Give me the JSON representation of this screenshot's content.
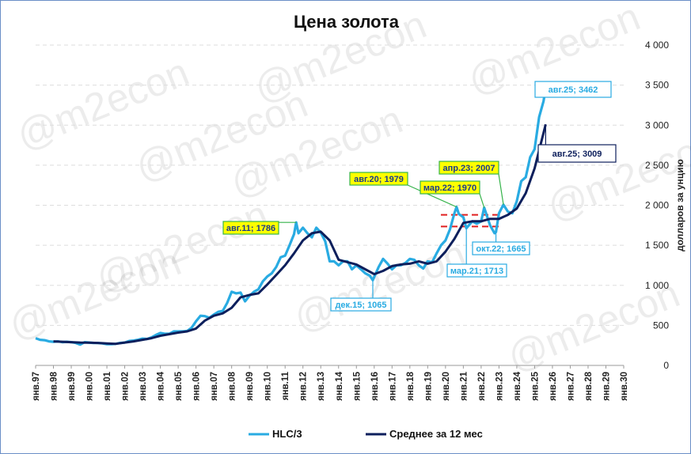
{
  "chart_data": {
    "type": "line",
    "title": "Цена золота",
    "ylabel": "долларов за унцию",
    "ylim": [
      0,
      4000
    ],
    "y_ticks": [
      "0",
      "500",
      "1 000",
      "1 500",
      "2 000",
      "2 500",
      "3 000",
      "3 500",
      "4 000"
    ],
    "y_tick_values": [
      0,
      500,
      1000,
      1500,
      2000,
      2500,
      3000,
      3500,
      4000
    ],
    "x_ticks": [
      "янв.97",
      "янв.98",
      "янв.99",
      "янв.00",
      "янв.01",
      "янв.02",
      "янв.03",
      "янв.04",
      "янв.05",
      "янв.06",
      "янв.07",
      "янв.08",
      "янв.09",
      "янв.10",
      "янв.11",
      "янв.12",
      "янв.13",
      "янв.14",
      "янв.15",
      "янв.16",
      "янв.17",
      "янв.18",
      "янв.19",
      "янв.20",
      "янв.21",
      "янв.22",
      "янв.23",
      "янв.24",
      "янв.25",
      "янв.26",
      "янв.27",
      "янв.28",
      "янв.29",
      "янв.30"
    ],
    "x_start_year": 1997,
    "grid": true,
    "legend_position": "bottom",
    "watermark": "@m2econ",
    "series": [
      {
        "name": "HLC/3",
        "color": "#29abe2",
        "x": [
          1997.0,
          1997.25,
          1997.5,
          1997.75,
          1998.0,
          1998.25,
          1998.5,
          1998.75,
          1999.0,
          1999.25,
          1999.5,
          1999.75,
          2000.0,
          2000.25,
          2000.5,
          2000.75,
          2001.0,
          2001.25,
          2001.5,
          2001.75,
          2002.0,
          2002.25,
          2002.5,
          2002.75,
          2003.0,
          2003.25,
          2003.5,
          2003.75,
          2004.0,
          2004.25,
          2004.5,
          2004.75,
          2005.0,
          2005.25,
          2005.5,
          2005.75,
          2006.0,
          2006.25,
          2006.5,
          2006.75,
          2007.0,
          2007.25,
          2007.5,
          2007.75,
          2008.0,
          2008.25,
          2008.5,
          2008.75,
          2009.0,
          2009.25,
          2009.5,
          2009.75,
          2010.0,
          2010.25,
          2010.5,
          2010.75,
          2011.0,
          2011.25,
          2011.5,
          2011.62,
          2011.75,
          2012.0,
          2012.25,
          2012.5,
          2012.75,
          2013.0,
          2013.25,
          2013.5,
          2013.75,
          2014.0,
          2014.25,
          2014.5,
          2014.75,
          2015.0,
          2015.25,
          2015.5,
          2015.75,
          2015.92,
          2016.25,
          2016.5,
          2016.75,
          2017.0,
          2017.25,
          2017.5,
          2017.75,
          2018.0,
          2018.25,
          2018.5,
          2018.75,
          2019.0,
          2019.25,
          2019.5,
          2019.75,
          2020.0,
          2020.25,
          2020.5,
          2020.62,
          2020.75,
          2021.0,
          2021.17,
          2021.5,
          2021.75,
          2022.0,
          2022.17,
          2022.5,
          2022.75,
          2022.83,
          2023.0,
          2023.25,
          2023.5,
          2023.75,
          2024.0,
          2024.25,
          2024.5,
          2024.75,
          2025.0,
          2025.25,
          2025.5,
          2025.62
        ],
        "y": [
          340,
          320,
          315,
          300,
          295,
          300,
          290,
          295,
          290,
          280,
          260,
          290,
          285,
          280,
          280,
          275,
          265,
          265,
          270,
          280,
          285,
          305,
          310,
          320,
          335,
          330,
          350,
          380,
          405,
          395,
          395,
          425,
          425,
          425,
          430,
          470,
          550,
          620,
          615,
          595,
          635,
          670,
          680,
          780,
          920,
          900,
          910,
          800,
          870,
          920,
          950,
          1050,
          1110,
          1150,
          1230,
          1350,
          1370,
          1500,
          1640,
          1786,
          1650,
          1720,
          1650,
          1600,
          1720,
          1660,
          1550,
          1300,
          1300,
          1250,
          1300,
          1300,
          1200,
          1250,
          1200,
          1150,
          1120,
          1065,
          1230,
          1330,
          1270,
          1200,
          1250,
          1250,
          1280,
          1330,
          1320,
          1250,
          1210,
          1300,
          1290,
          1400,
          1500,
          1560,
          1700,
          1900,
          1979,
          1890,
          1850,
          1713,
          1800,
          1770,
          1800,
          1970,
          1750,
          1650,
          1665,
          1900,
          2007,
          1920,
          1900,
          2050,
          2300,
          2350,
          2600,
          2700,
          3100,
          3300,
          3462
        ]
      },
      {
        "name": "Среднее за 12 мес",
        "color": "#0d1f5c",
        "x": [
          1998.0,
          1998.5,
          1999.0,
          1999.5,
          2000.0,
          2000.5,
          2001.0,
          2001.5,
          2002.0,
          2002.5,
          2003.0,
          2003.5,
          2004.0,
          2004.5,
          2005.0,
          2005.5,
          2006.0,
          2006.5,
          2007.0,
          2007.5,
          2008.0,
          2008.5,
          2009.0,
          2009.5,
          2010.0,
          2010.5,
          2011.0,
          2011.5,
          2012.0,
          2012.5,
          2013.0,
          2013.5,
          2014.0,
          2014.5,
          2015.0,
          2015.5,
          2016.0,
          2016.5,
          2017.0,
          2017.5,
          2018.0,
          2018.5,
          2019.0,
          2019.5,
          2020.0,
          2020.5,
          2021.0,
          2021.5,
          2022.0,
          2022.5,
          2023.0,
          2023.5,
          2024.0,
          2024.5,
          2025.0,
          2025.62
        ],
        "y": [
          300,
          295,
          290,
          285,
          283,
          280,
          275,
          270,
          285,
          300,
          320,
          340,
          370,
          390,
          410,
          425,
          460,
          560,
          620,
          650,
          720,
          850,
          880,
          900,
          1010,
          1130,
          1250,
          1400,
          1560,
          1650,
          1670,
          1560,
          1320,
          1290,
          1260,
          1200,
          1140,
          1180,
          1240,
          1260,
          1270,
          1300,
          1270,
          1300,
          1420,
          1580,
          1780,
          1800,
          1800,
          1830,
          1830,
          1880,
          1960,
          2150,
          2460,
          3009
        ]
      }
    ],
    "reference_lines": [
      1880,
      1735
    ],
    "annotations": [
      {
        "text": "авг.11; 1786",
        "style": "yellow"
      },
      {
        "text": "авг.20; 1979",
        "style": "yellow"
      },
      {
        "text": "мар.22; 1970",
        "style": "yellow"
      },
      {
        "text": "апр.23; 2007",
        "style": "yellow"
      },
      {
        "text": "авг.25; 3462",
        "style": "blue"
      },
      {
        "text": "авг.25; 3009",
        "style": "navy"
      },
      {
        "text": "дек.15; 1065",
        "style": "blue"
      },
      {
        "text": "мар.21; 1713",
        "style": "blue"
      },
      {
        "text": "окт.22; 1665",
        "style": "blue"
      }
    ],
    "colors": {
      "yellow_fill": "#ffff00",
      "yellow_border": "#35b34a",
      "ann_blue": "#29abe2",
      "ann_navy": "#0d1f5c",
      "refline": "#e02020"
    }
  }
}
